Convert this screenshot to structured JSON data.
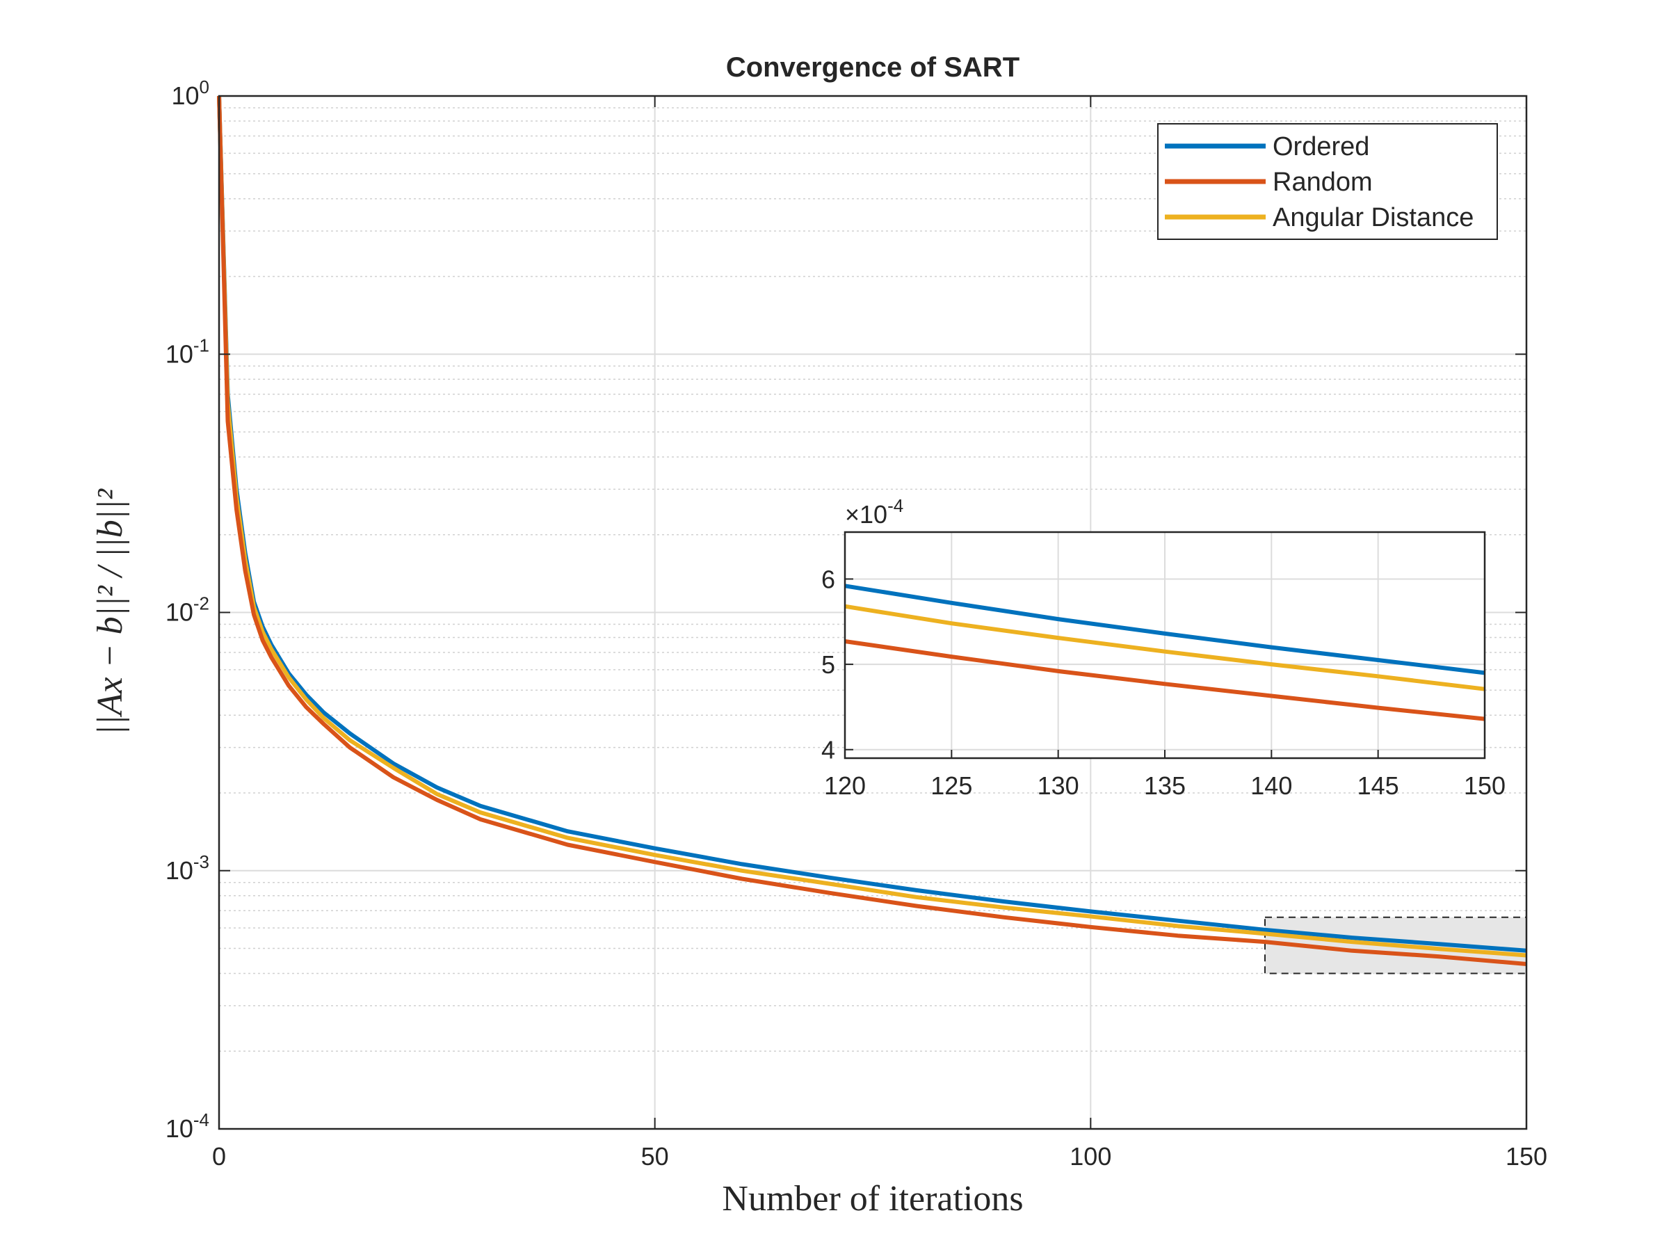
{
  "chart_data": [
    {
      "type": "line",
      "title": "Convergence of SART",
      "xlabel": "Number of iterations",
      "ylabel": "||Ax − b||² / ||b||²",
      "xlim": [
        0,
        150
      ],
      "ylim": [
        0.0001,
        1
      ],
      "yscale": "log",
      "grid": true,
      "legend_position": "top-right",
      "x_ticks": [
        "0",
        "50",
        "100",
        "150"
      ],
      "y_ticks": [
        {
          "base": "10",
          "exp": "0"
        },
        {
          "base": "10",
          "exp": "-1"
        },
        {
          "base": "10",
          "exp": "-2"
        },
        {
          "base": "10",
          "exp": "-3"
        },
        {
          "base": "10",
          "exp": "-4"
        }
      ],
      "x": [
        0,
        1,
        2,
        3,
        4,
        5,
        6,
        8,
        10,
        12,
        15,
        20,
        25,
        30,
        40,
        50,
        60,
        70,
        80,
        90,
        100,
        110,
        120,
        130,
        140,
        150
      ],
      "series": [
        {
          "name": "Ordered",
          "color": "#0072BD",
          "values": [
            1.0,
            0.07,
            0.03,
            0.017,
            0.011,
            0.0088,
            0.0075,
            0.0058,
            0.0048,
            0.0041,
            0.0034,
            0.0026,
            0.0021,
            0.00178,
            0.00142,
            0.00122,
            0.00106,
            0.00094,
            0.00084,
            0.00076,
            0.000695,
            0.00064,
            0.00059,
            0.00055,
            0.00052,
            0.00049
          ]
        },
        {
          "name": "Random",
          "color": "#D95319",
          "values": [
            1.0,
            0.055,
            0.025,
            0.0145,
            0.0098,
            0.0078,
            0.0067,
            0.0052,
            0.0043,
            0.0037,
            0.003,
            0.0023,
            0.00188,
            0.00158,
            0.00126,
            0.00108,
            0.00093,
            0.00082,
            0.00073,
            0.00066,
            0.000605,
            0.00056,
            0.00053,
            0.00049,
            0.000465,
            0.000435
          ]
        },
        {
          "name": "Angular Distance",
          "color": "#EDB120",
          "values": [
            1.0,
            0.065,
            0.028,
            0.016,
            0.0105,
            0.0084,
            0.0072,
            0.0056,
            0.0046,
            0.0039,
            0.0032,
            0.0025,
            0.00198,
            0.00168,
            0.00134,
            0.00115,
            0.001,
            0.00089,
            0.00079,
            0.00072,
            0.000665,
            0.00061,
            0.00057,
            0.00053,
            0.000498,
            0.00047
          ]
        }
      ],
      "highlight_box": {
        "x": [
          120,
          150
        ],
        "y": [
          0.0004,
          0.00066
        ]
      }
    },
    {
      "type": "line",
      "title": "",
      "xlim": [
        120,
        150
      ],
      "ylim": [
        3.9,
        6.55
      ],
      "grid": true,
      "scale_label": {
        "base": "×10",
        "exp": "-4"
      },
      "x_ticks": [
        "120",
        "125",
        "130",
        "135",
        "140",
        "145",
        "150"
      ],
      "y_ticks": [
        "4",
        "5",
        "6"
      ],
      "x": [
        120,
        125,
        130,
        135,
        140,
        145,
        150
      ],
      "series": [
        {
          "name": "Ordered",
          "color": "#0072BD",
          "values": [
            5.92,
            5.72,
            5.53,
            5.36,
            5.2,
            5.05,
            4.9
          ]
        },
        {
          "name": "Random",
          "color": "#D95319",
          "values": [
            5.27,
            5.09,
            4.92,
            4.77,
            4.63,
            4.49,
            4.36
          ]
        },
        {
          "name": "Angular Distance",
          "color": "#EDB120",
          "values": [
            5.68,
            5.48,
            5.31,
            5.15,
            5.0,
            4.86,
            4.71
          ]
        }
      ]
    }
  ]
}
